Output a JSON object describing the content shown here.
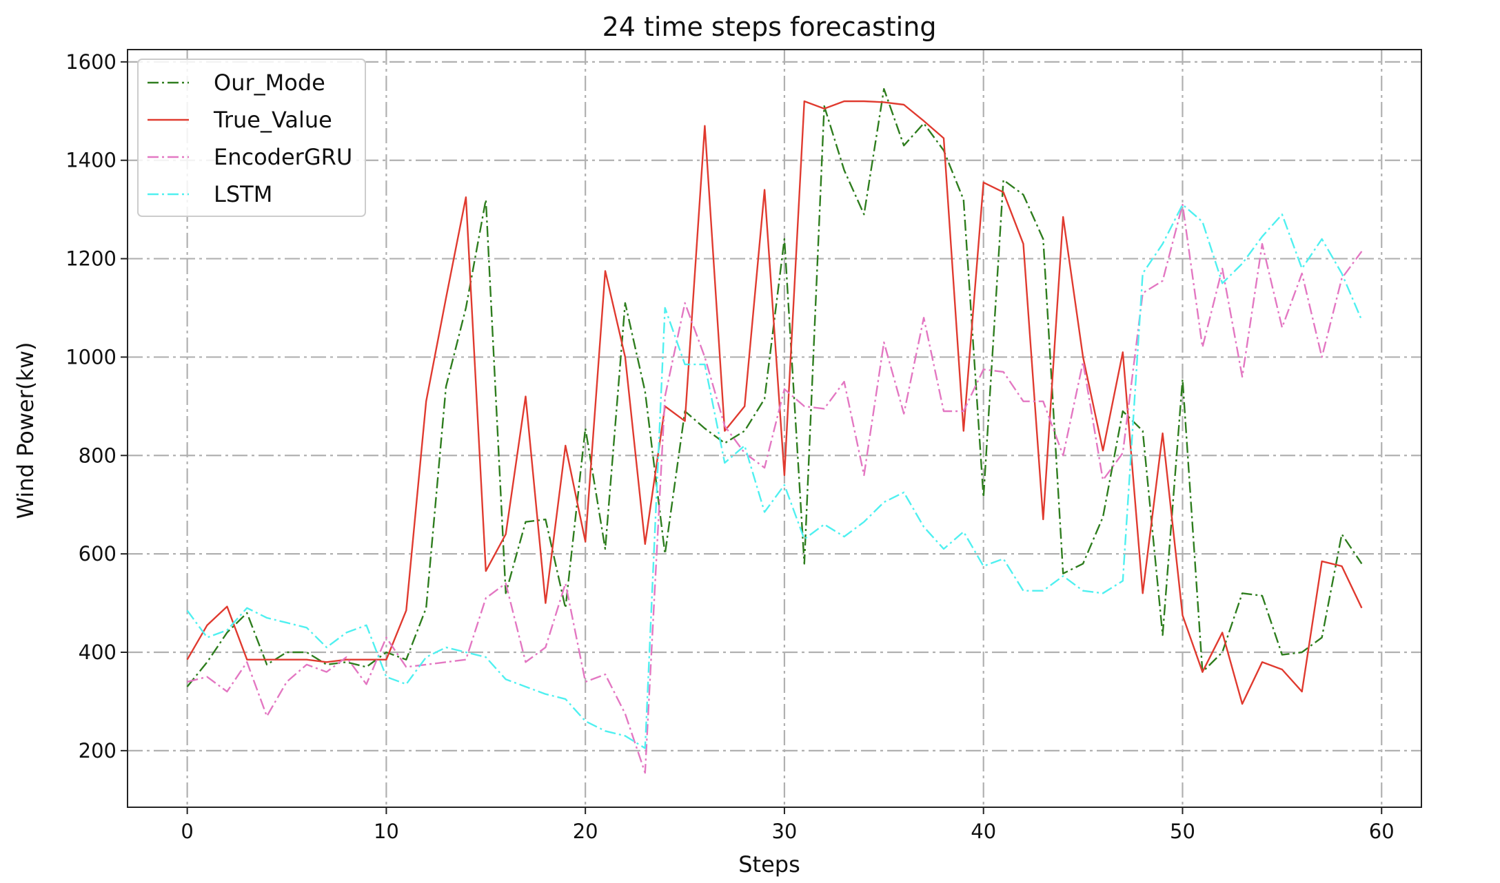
{
  "chart_data": {
    "type": "line",
    "title": "24 time steps forecasting",
    "xlabel": "Steps",
    "ylabel": "Wind Power(kw)",
    "xlim": [
      -3,
      62
    ],
    "ylim": [
      85,
      1625
    ],
    "xticks": [
      0,
      10,
      20,
      30,
      40,
      50,
      60
    ],
    "yticks": [
      200,
      400,
      600,
      800,
      1000,
      1200,
      1400,
      1600
    ],
    "grid": true,
    "legend_position": "top-left",
    "x": [
      0,
      1,
      2,
      3,
      4,
      5,
      6,
      7,
      8,
      9,
      10,
      11,
      12,
      13,
      14,
      15,
      16,
      17,
      18,
      19,
      20,
      21,
      22,
      23,
      24,
      25,
      26,
      27,
      28,
      29,
      30,
      31,
      32,
      33,
      34,
      35,
      36,
      37,
      38,
      39,
      40,
      41,
      42,
      43,
      44,
      45,
      46,
      47,
      48,
      49,
      50,
      51,
      52,
      53,
      54,
      55,
      56,
      57,
      58,
      59
    ],
    "series": [
      {
        "name": "Our_Mode",
        "color": "#2e7d1e",
        "dash": "dashdot",
        "values": [
          330,
          380,
          440,
          480,
          375,
          400,
          400,
          375,
          380,
          370,
          400,
          385,
          490,
          940,
          1100,
          1320,
          520,
          665,
          670,
          490,
          855,
          610,
          1110,
          930,
          600,
          890,
          855,
          825,
          850,
          915,
          1240,
          580,
          1510,
          1380,
          1290,
          1545,
          1430,
          1475,
          1420,
          1320,
          715,
          1360,
          1330,
          1240,
          560,
          580,
          675,
          890,
          850,
          435,
          955,
          360,
          400,
          520,
          515,
          395,
          400,
          430,
          640,
          580
        ]
      },
      {
        "name": "True_Value",
        "color": "#e03a2f",
        "dash": "solid",
        "values": [
          385,
          455,
          493,
          385,
          385,
          385,
          385,
          380,
          385,
          385,
          385,
          485,
          910,
          1120,
          1325,
          565,
          640,
          920,
          500,
          820,
          625,
          1175,
          1000,
          620,
          900,
          870,
          1470,
          850,
          900,
          1340,
          760,
          1520,
          1505,
          1520,
          1520,
          1518,
          1513,
          1480,
          1445,
          850,
          1355,
          1335,
          1230,
          670,
          1285,
          1000,
          810,
          1010,
          520,
          845,
          475,
          360,
          440,
          295,
          380,
          365,
          320,
          585,
          575,
          490
        ]
      },
      {
        "name": "EncoderGRU",
        "color": "#e377c2",
        "dash": "dashdot",
        "values": [
          340,
          350,
          320,
          380,
          270,
          340,
          375,
          360,
          390,
          335,
          430,
          370,
          375,
          380,
          385,
          510,
          540,
          380,
          410,
          540,
          340,
          355,
          275,
          155,
          920,
          1110,
          1000,
          860,
          805,
          775,
          935,
          900,
          895,
          950,
          760,
          1030,
          885,
          1080,
          890,
          890,
          975,
          970,
          910,
          910,
          800,
          990,
          750,
          805,
          1130,
          1155,
          1310,
          1020,
          1180,
          960,
          1230,
          1060,
          1170,
          1000,
          1160,
          1215
        ]
      },
      {
        "name": "LSTM",
        "color": "#4ff0f0",
        "dash": "dashdot",
        "values": [
          485,
          430,
          445,
          490,
          470,
          460,
          450,
          410,
          440,
          455,
          350,
          335,
          390,
          410,
          400,
          390,
          345,
          330,
          315,
          305,
          260,
          240,
          230,
          205,
          1100,
          985,
          985,
          785,
          820,
          685,
          740,
          630,
          660,
          635,
          665,
          705,
          725,
          655,
          610,
          645,
          575,
          590,
          525,
          525,
          555,
          525,
          520,
          545,
          1170,
          1230,
          1310,
          1275,
          1150,
          1190,
          1245,
          1290,
          1180,
          1240,
          1170,
          1075
        ]
      }
    ]
  }
}
